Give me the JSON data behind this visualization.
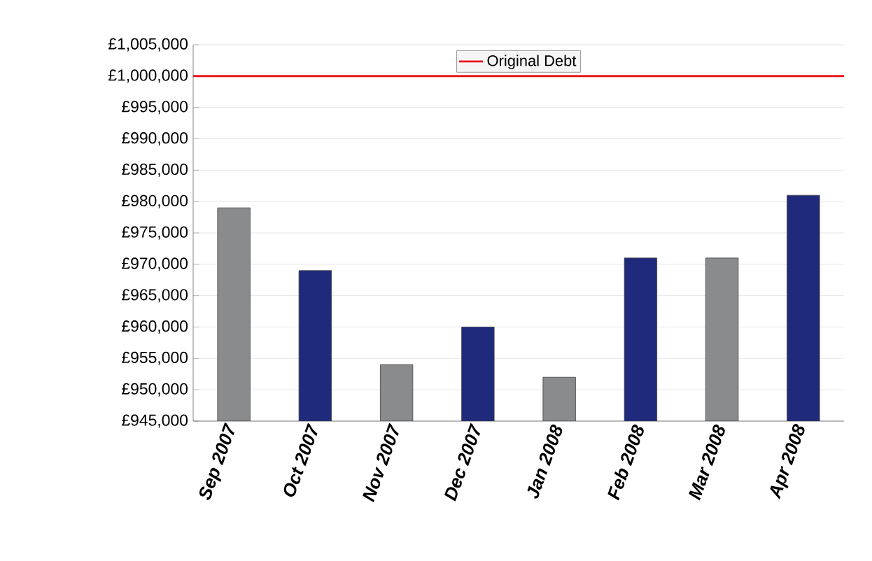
{
  "chart_data": {
    "type": "bar",
    "categories": [
      "Sep 2007",
      "Oct 2007",
      "Nov 2007",
      "Dec 2007",
      "Jan 2008",
      "Feb 2008",
      "Mar 2008",
      "Apr 2008"
    ],
    "values": [
      979000,
      969000,
      954000,
      960000,
      952000,
      971000,
      971000,
      981000
    ],
    "colors": [
      "#8a8b8d",
      "#1f2a7c",
      "#8a8b8d",
      "#1f2a7c",
      "#8a8b8d",
      "#1f2a7c",
      "#8a8b8d",
      "#1f2a7c"
    ],
    "ylim": [
      945000,
      1005000
    ],
    "yticks": [
      {
        "value": 945000,
        "label": "£945,000"
      },
      {
        "value": 950000,
        "label": "£950,000"
      },
      {
        "value": 955000,
        "label": "£955,000"
      },
      {
        "value": 960000,
        "label": "£960,000"
      },
      {
        "value": 965000,
        "label": "£965,000"
      },
      {
        "value": 970000,
        "label": "£970,000"
      },
      {
        "value": 975000,
        "label": "£975,000"
      },
      {
        "value": 980000,
        "label": "£980,000"
      },
      {
        "value": 985000,
        "label": "£985,000"
      },
      {
        "value": 990000,
        "label": "£990,000"
      },
      {
        "value": 995000,
        "label": "£995,000"
      },
      {
        "value": 1000000,
        "label": "£1,000,000"
      },
      {
        "value": 1005000,
        "label": "£1,005,000"
      }
    ],
    "ref_lines": [
      {
        "axis": "y",
        "value": 1000000,
        "label": "Original Debt",
        "color": "#e8161b"
      }
    ],
    "grid": "y",
    "legend": "top"
  }
}
